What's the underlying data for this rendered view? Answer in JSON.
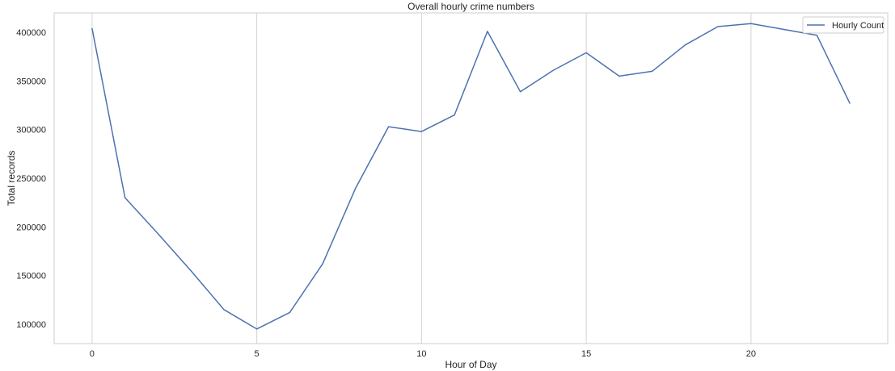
{
  "chart_data": {
    "type": "line",
    "title": "Overall hourly crime numbers",
    "xlabel": "Hour of Day",
    "ylabel": "Total records",
    "xlim": [
      -1.15,
      24.15
    ],
    "ylim": [
      80000,
      420000
    ],
    "xticks": [
      0,
      5,
      10,
      15,
      20
    ],
    "yticks": [
      100000,
      150000,
      200000,
      250000,
      300000,
      350000,
      400000
    ],
    "grid": "x-only",
    "legend_position": "top-right",
    "series": [
      {
        "name": "Hourly Count",
        "color": "#4c72b0",
        "x": [
          0,
          1,
          2,
          3,
          4,
          5,
          6,
          7,
          8,
          9,
          10,
          11,
          12,
          13,
          14,
          15,
          16,
          17,
          18,
          19,
          20,
          21,
          22,
          23
        ],
        "values": [
          404000,
          230000,
          193000,
          155000,
          115000,
          95000,
          112000,
          162000,
          240000,
          303000,
          298000,
          315000,
          401000,
          339000,
          361000,
          379000,
          355000,
          360000,
          387000,
          406000,
          409000,
          403000,
          397000,
          327000
        ]
      }
    ]
  }
}
